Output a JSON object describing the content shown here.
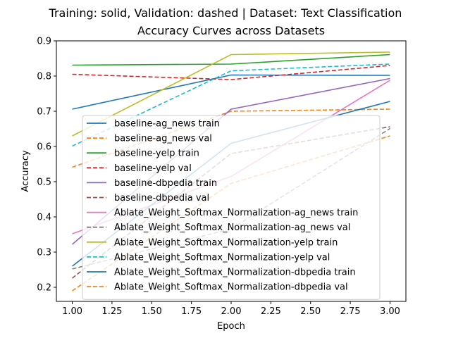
{
  "chart_data": {
    "type": "line",
    "suptitle": "Training: solid, Validation: dashed | Dataset: Text Classification",
    "title": "Accuracy Curves across Datasets",
    "xlabel": "Epoch",
    "ylabel": "Accuracy",
    "xlim": [
      0.9,
      3.1
    ],
    "ylim": [
      0.16,
      0.9
    ],
    "xticks": [
      "1.00",
      "1.25",
      "1.50",
      "1.75",
      "2.00",
      "2.25",
      "2.50",
      "2.75",
      "3.00"
    ],
    "yticks": [
      "0.2",
      "0.3",
      "0.4",
      "0.5",
      "0.6",
      "0.7",
      "0.8",
      "0.9"
    ],
    "grid": false,
    "legend_position": "lower-center",
    "x": [
      1,
      2,
      3
    ],
    "series": [
      {
        "name": "baseline-ag_news train",
        "values": [
          0.706,
          0.803,
          0.802
        ],
        "color": "#1f77b4",
        "dashed": false
      },
      {
        "name": "baseline-ag_news val",
        "values": [
          0.541,
          0.7,
          0.706
        ],
        "color": "#ff7f0e",
        "dashed": true
      },
      {
        "name": "baseline-yelp train",
        "values": [
          0.831,
          0.834,
          0.861
        ],
        "color": "#2ca02c",
        "dashed": false
      },
      {
        "name": "baseline-yelp val",
        "values": [
          0.805,
          0.79,
          0.83
        ],
        "color": "#d62728",
        "dashed": true
      },
      {
        "name": "baseline-dbpedia train",
        "values": [
          0.322,
          0.706,
          0.793
        ],
        "color": "#9467bd",
        "dashed": false
      },
      {
        "name": "baseline-dbpedia val",
        "values": [
          0.226,
          0.58,
          0.656
        ],
        "color": "#8c564b",
        "dashed": true
      },
      {
        "name": "Ablate_Weight_Softmax_Normalization-ag_news train",
        "values": [
          0.352,
          0.515,
          0.788
        ],
        "color": "#e377c2",
        "dashed": false
      },
      {
        "name": "Ablate_Weight_Softmax_Normalization-ag_news val",
        "values": [
          0.252,
          0.366,
          0.651
        ],
        "color": "#7f7f7f",
        "dashed": true
      },
      {
        "name": "Ablate_Weight_Softmax_Normalization-yelp train",
        "values": [
          0.63,
          0.861,
          0.868
        ],
        "color": "#bcbd22",
        "dashed": false
      },
      {
        "name": "Ablate_Weight_Softmax_Normalization-yelp val",
        "values": [
          0.601,
          0.815,
          0.834
        ],
        "color": "#17becf",
        "dashed": true
      },
      {
        "name": "Ablate_Weight_Softmax_Normalization-dbpedia train",
        "values": [
          0.26,
          0.609,
          0.728
        ],
        "color": "#1f77b4",
        "dashed": false
      },
      {
        "name": "Ablate_Weight_Softmax_Normalization-dbpedia val",
        "values": [
          0.19,
          0.495,
          0.63
        ],
        "color": "#ff7f0e",
        "dashed": true
      }
    ]
  }
}
